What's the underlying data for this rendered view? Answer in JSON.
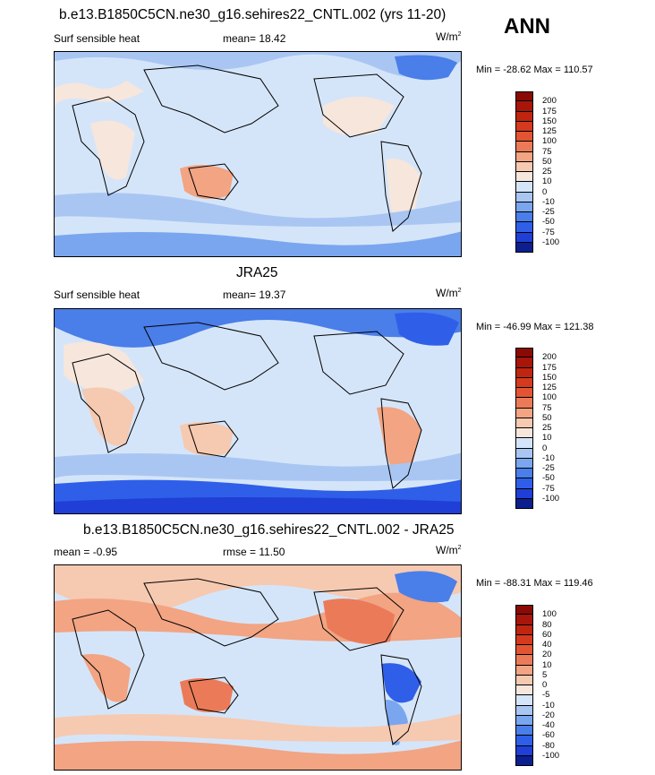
{
  "season": "ANN",
  "panels": [
    {
      "title": "b.e13.B1850C5CN.ne30_g16.sehires22_CNTL.002 (yrs 11-20)",
      "left": "Surf sensible heat",
      "center": "mean=  18.42",
      "units": "W/m",
      "units_sup": "2",
      "minmax": "Min = -28.62 Max = 110.57",
      "colorbar_labels": [
        "200",
        "175",
        "150",
        "125",
        "100",
        "75",
        "50",
        "25",
        "10",
        "0",
        "-10",
        "-25",
        "-50",
        "-75",
        "-100"
      ]
    },
    {
      "title": "JRA25",
      "left": "Surf sensible heat",
      "center": "mean=  19.37",
      "units": "W/m",
      "units_sup": "2",
      "minmax": "Min = -46.99 Max = 121.38",
      "colorbar_labels": [
        "200",
        "175",
        "150",
        "125",
        "100",
        "75",
        "50",
        "25",
        "10",
        "0",
        "-10",
        "-25",
        "-50",
        "-75",
        "-100"
      ]
    },
    {
      "title": "b.e13.B1850C5CN.ne30_g16.sehires22_CNTL.002 - JRA25",
      "left": "mean =  -0.95",
      "center": "rmse =  11.50",
      "units": "W/m",
      "units_sup": "2",
      "minmax": "Min = -88.31 Max = 119.46",
      "colorbar_labels": [
        "100",
        "80",
        "60",
        "40",
        "20",
        "10",
        "5",
        "0",
        "-5",
        "-10",
        "-20",
        "-40",
        "-60",
        "-80",
        "-100"
      ]
    }
  ],
  "chart_data": [
    {
      "type": "heatmap",
      "title": "b.e13.B1850C5CN.ne30_g16.sehires22_CNTL.002 (yrs 11-20)",
      "variable": "Surf sensible heat",
      "units": "W/m2",
      "mean": 18.42,
      "min": -28.62,
      "max": 110.57,
      "levels": [
        -100,
        -75,
        -50,
        -25,
        -10,
        0,
        10,
        25,
        50,
        75,
        100,
        125,
        150,
        175,
        200
      ],
      "colors": [
        "#0b1f8f",
        "#1f3fd6",
        "#2f5fe8",
        "#4a7ee8",
        "#7aa6ef",
        "#a9c6f3",
        "#d5e5f9",
        "#f6e6dc",
        "#f6c9b1",
        "#f2a483",
        "#eb7b58",
        "#e35532",
        "#d63a1e",
        "#c0250f",
        "#a8150a",
        "#8a0a05"
      ]
    },
    {
      "type": "heatmap",
      "title": "JRA25",
      "variable": "Surf sensible heat",
      "units": "W/m2",
      "mean": 19.37,
      "min": -46.99,
      "max": 121.38,
      "levels": [
        -100,
        -75,
        -50,
        -25,
        -10,
        0,
        10,
        25,
        50,
        75,
        100,
        125,
        150,
        175,
        200
      ],
      "colors": [
        "#0b1f8f",
        "#1f3fd6",
        "#2f5fe8",
        "#4a7ee8",
        "#7aa6ef",
        "#a9c6f3",
        "#d5e5f9",
        "#f6e6dc",
        "#f6c9b1",
        "#f2a483",
        "#eb7b58",
        "#e35532",
        "#d63a1e",
        "#c0250f",
        "#a8150a",
        "#8a0a05"
      ]
    },
    {
      "type": "heatmap",
      "title": "b.e13.B1850C5CN.ne30_g16.sehires22_CNTL.002 - JRA25",
      "units": "W/m2",
      "mean": -0.95,
      "rmse": 11.5,
      "min": -88.31,
      "max": 119.46,
      "levels": [
        -100,
        -80,
        -60,
        -40,
        -20,
        -10,
        -5,
        0,
        5,
        10,
        20,
        40,
        60,
        80,
        100
      ],
      "colors": [
        "#0b1f8f",
        "#1f3fd6",
        "#2f5fe8",
        "#4a7ee8",
        "#7aa6ef",
        "#a9c6f3",
        "#d5e5f9",
        "#f6e6dc",
        "#f6c9b1",
        "#f2a483",
        "#eb7b58",
        "#e35532",
        "#d63a1e",
        "#c0250f",
        "#a8150a",
        "#8a0a05"
      ]
    }
  ]
}
